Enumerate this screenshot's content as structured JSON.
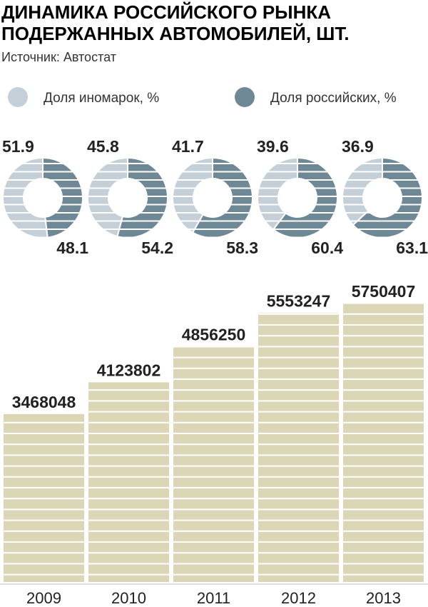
{
  "chart_data": [
    {
      "type": "donut",
      "title": "ДИНАМИКА РОССИЙСКОГО РЫНКА ПОДЕРЖАННЫХ АВТОМОБИЛЕЙ, ШТ.",
      "subtitle": "Источник: Автостат",
      "series": [
        {
          "name": "Доля иномарок, %",
          "color": "#c4cfd7",
          "values": [
            51.9,
            45.8,
            41.7,
            39.6,
            36.9
          ]
        },
        {
          "name": "Доля российских, %",
          "color": "#6f8895",
          "values": [
            48.1,
            54.2,
            58.3,
            60.4,
            63.1
          ]
        }
      ]
    },
    {
      "type": "bar",
      "categories": [
        "2009",
        "2010",
        "2011",
        "2012",
        "2013"
      ],
      "values": [
        3468048,
        4123802,
        4856250,
        5553247,
        5750407
      ],
      "color": "#dbd7b6"
    }
  ]
}
